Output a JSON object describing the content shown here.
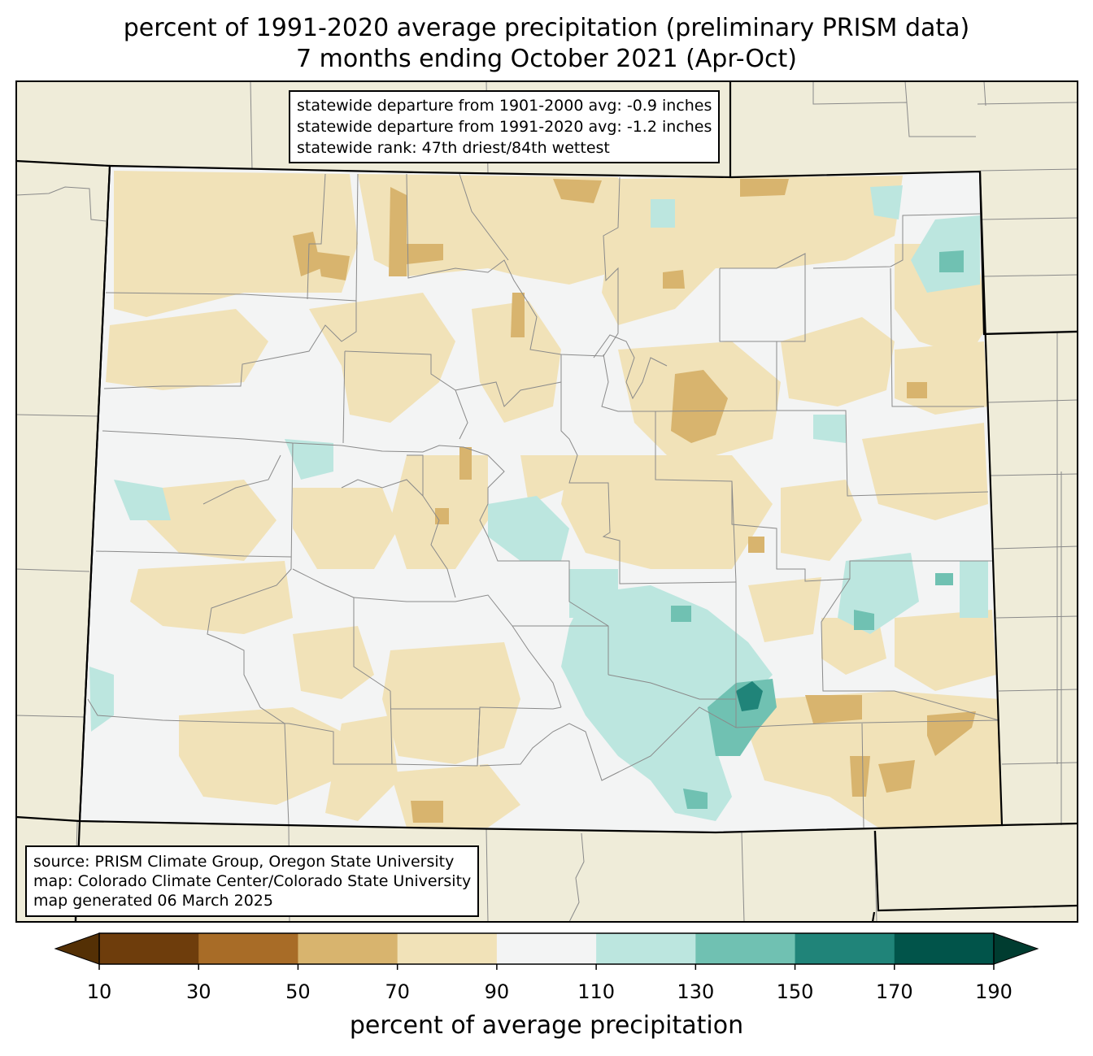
{
  "title": {
    "line1": "percent of 1991-2020 average precipitation (preliminary PRISM data)",
    "line2": "7 months ending October 2021 (Apr-Oct)"
  },
  "stats": {
    "departure_1901_2000": "statewide departure from 1901-2000 avg: -0.9 inches",
    "departure_1991_2020": "statewide departure from 1991-2020 avg: -1.2 inches",
    "rank": "statewide rank: 47th driest/84th wettest"
  },
  "source": {
    "line1": "source: PRISM Climate Group, Oregon State University",
    "line2": "map: Colorado Climate Center/Colorado State University",
    "line3": "map generated 06 March 2025"
  },
  "colorbar": {
    "label": "percent of average precipitation",
    "ticks": [
      "10",
      "30",
      "50",
      "70",
      "90",
      "110",
      "130",
      "150",
      "170",
      "190"
    ],
    "colors": [
      "#6e3d0c",
      "#a86c27",
      "#d8b46e",
      "#f1e2b8",
      "#f3f4f4",
      "#bce6df",
      "#70c1b2",
      "#208479",
      "#01544a"
    ],
    "under_color": "#543005",
    "over_color": "#003c30"
  },
  "map_colors": {
    "background": "#efecd9",
    "state_fill": "#f3f4f4"
  }
}
